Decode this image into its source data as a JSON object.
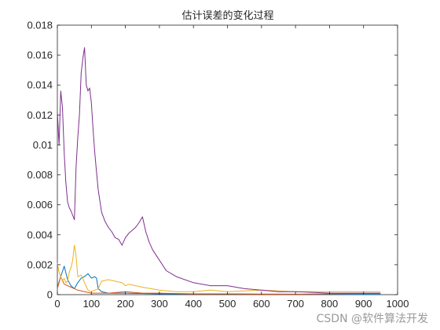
{
  "chart_data": {
    "type": "line",
    "title": "估计误差的变化过程",
    "xlabel": "",
    "ylabel": "",
    "xlim": [
      0,
      1000
    ],
    "ylim": [
      0,
      0.018
    ],
    "xticks": [
      0,
      100,
      200,
      300,
      400,
      500,
      600,
      700,
      800,
      900,
      1000
    ],
    "yticks": [
      0,
      0.002,
      0.004,
      0.006,
      0.008,
      0.01,
      0.012,
      0.014,
      0.016,
      0.018
    ],
    "xtick_labels": [
      "0",
      "100",
      "200",
      "300",
      "400",
      "500",
      "600",
      "700",
      "800",
      "900",
      "1000"
    ],
    "ytick_labels": [
      "0",
      "0.002",
      "0.004",
      "0.006",
      "0.008",
      "0.01",
      "0.012",
      "0.014",
      "0.016",
      "0.018"
    ],
    "grid": false,
    "legend": "none",
    "series": [
      {
        "color": "#0072BD",
        "x": [
          0,
          10,
          20,
          30,
          40,
          50,
          60,
          70,
          80,
          90,
          100,
          110,
          115,
          120,
          130,
          150,
          200,
          300,
          400,
          600,
          800,
          950
        ],
        "values": [
          0.0005,
          0.0012,
          0.0019,
          0.001,
          0.0006,
          0.0004,
          0.0008,
          0.0011,
          0.0012,
          0.0014,
          0.0011,
          0.0012,
          0.0011,
          0.0004,
          0.0002,
          0.0001,
          0.0001,
          5e-05,
          5e-05,
          3e-05,
          2e-05,
          2e-05
        ]
      },
      {
        "color": "#D95319",
        "x": [
          0,
          10,
          20,
          30,
          40,
          50,
          60,
          80,
          100,
          120,
          150,
          200,
          250,
          300,
          400,
          500,
          600,
          700,
          800,
          900,
          950
        ],
        "values": [
          0.0004,
          0.0012,
          0.0007,
          0.0006,
          0.0005,
          0.0004,
          0.0003,
          0.0002,
          0.0001,
          0.0001,
          0.0001,
          0.0002,
          0.0001,
          0.0001,
          5e-05,
          5e-05,
          3e-05,
          3e-05,
          5e-05,
          8e-05,
          8e-05
        ]
      },
      {
        "color": "#EDB120",
        "x": [
          0,
          5,
          10,
          15,
          20,
          25,
          30,
          35,
          40,
          45,
          50,
          55,
          60,
          70,
          80,
          90,
          100,
          120,
          130,
          150,
          170,
          190,
          200,
          210,
          250,
          300,
          350,
          400,
          450,
          500,
          600,
          700,
          800,
          900,
          950
        ],
        "values": [
          0.0021,
          0.0015,
          0.0012,
          0.0009,
          0.0011,
          0.0008,
          0.0009,
          0.0015,
          0.0018,
          0.0023,
          0.0033,
          0.0026,
          0.0012,
          0.0013,
          0.0008,
          0.0003,
          0.0002,
          0.0004,
          0.0009,
          0.001,
          0.0009,
          0.0008,
          0.0006,
          0.0007,
          0.0005,
          0.0003,
          0.0002,
          0.0002,
          0.0003,
          0.0002,
          0.0003,
          0.0002,
          0.0002,
          0.0002,
          0.0002
        ]
      },
      {
        "color": "#7E2F8E",
        "x": [
          0,
          5,
          10,
          15,
          20,
          25,
          30,
          35,
          40,
          45,
          50,
          55,
          60,
          65,
          70,
          75,
          80,
          85,
          90,
          95,
          100,
          105,
          110,
          115,
          120,
          130,
          140,
          150,
          160,
          170,
          180,
          190,
          200,
          210,
          220,
          230,
          240,
          250,
          260,
          270,
          280,
          300,
          320,
          350,
          400,
          450,
          500,
          550,
          600,
          650,
          700,
          800,
          900,
          950
        ],
        "values": [
          0.0122,
          0.01,
          0.0136,
          0.0125,
          0.0095,
          0.0075,
          0.0062,
          0.0058,
          0.0056,
          0.0053,
          0.005,
          0.0085,
          0.0105,
          0.012,
          0.0148,
          0.0158,
          0.0165,
          0.014,
          0.0136,
          0.0138,
          0.0128,
          0.011,
          0.0095,
          0.0082,
          0.007,
          0.0055,
          0.0049,
          0.0045,
          0.0042,
          0.0038,
          0.0037,
          0.0033,
          0.0038,
          0.0041,
          0.0043,
          0.0045,
          0.0048,
          0.0052,
          0.0042,
          0.0035,
          0.003,
          0.0023,
          0.0016,
          0.0012,
          0.0008,
          0.0006,
          0.0006,
          0.0004,
          0.0003,
          0.0002,
          0.0002,
          0.0001,
          0.0001,
          0.0001
        ]
      }
    ]
  },
  "watermark": "CSDN @软件算法开发"
}
